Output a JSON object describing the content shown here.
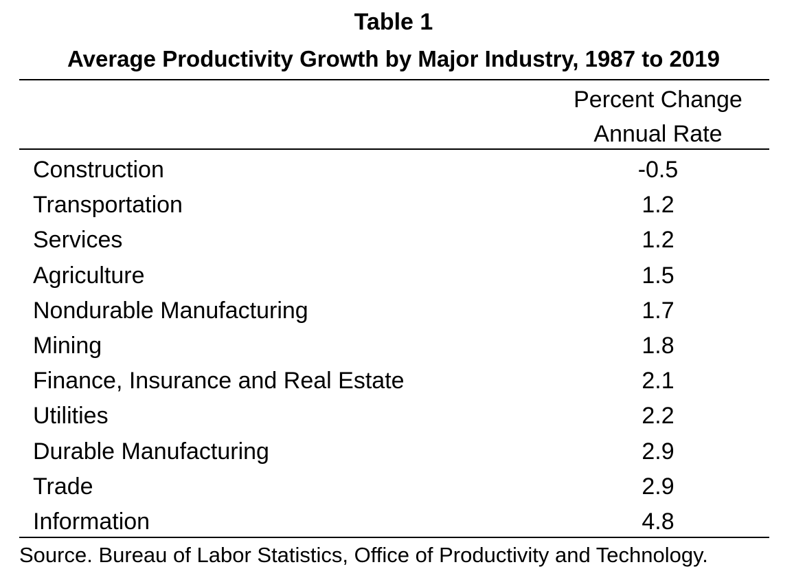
{
  "table": {
    "label": "Table 1",
    "title": "Average Productivity Growth by Major Industry, 1987 to 2019",
    "column_header_line1": "Percent Change",
    "column_header_line2": "Annual Rate",
    "rows": [
      {
        "industry": "Construction",
        "value": "-0.5"
      },
      {
        "industry": "Transportation",
        "value": "1.2"
      },
      {
        "industry": "Services",
        "value": "1.2"
      },
      {
        "industry": "Agriculture",
        "value": "1.5"
      },
      {
        "industry": "Nondurable Manufacturing",
        "value": "1.7"
      },
      {
        "industry": "Mining",
        "value": "1.8"
      },
      {
        "industry": "Finance, Insurance and Real Estate",
        "value": "2.1"
      },
      {
        "industry": "Utilities",
        "value": "2.2"
      },
      {
        "industry": "Durable Manufacturing",
        "value": "2.9"
      },
      {
        "industry": "Trade",
        "value": "2.9"
      },
      {
        "industry": "Information",
        "value": "4.8"
      }
    ],
    "source": "Source.  Bureau of Labor Statistics, Office of Productivity and Technology."
  }
}
